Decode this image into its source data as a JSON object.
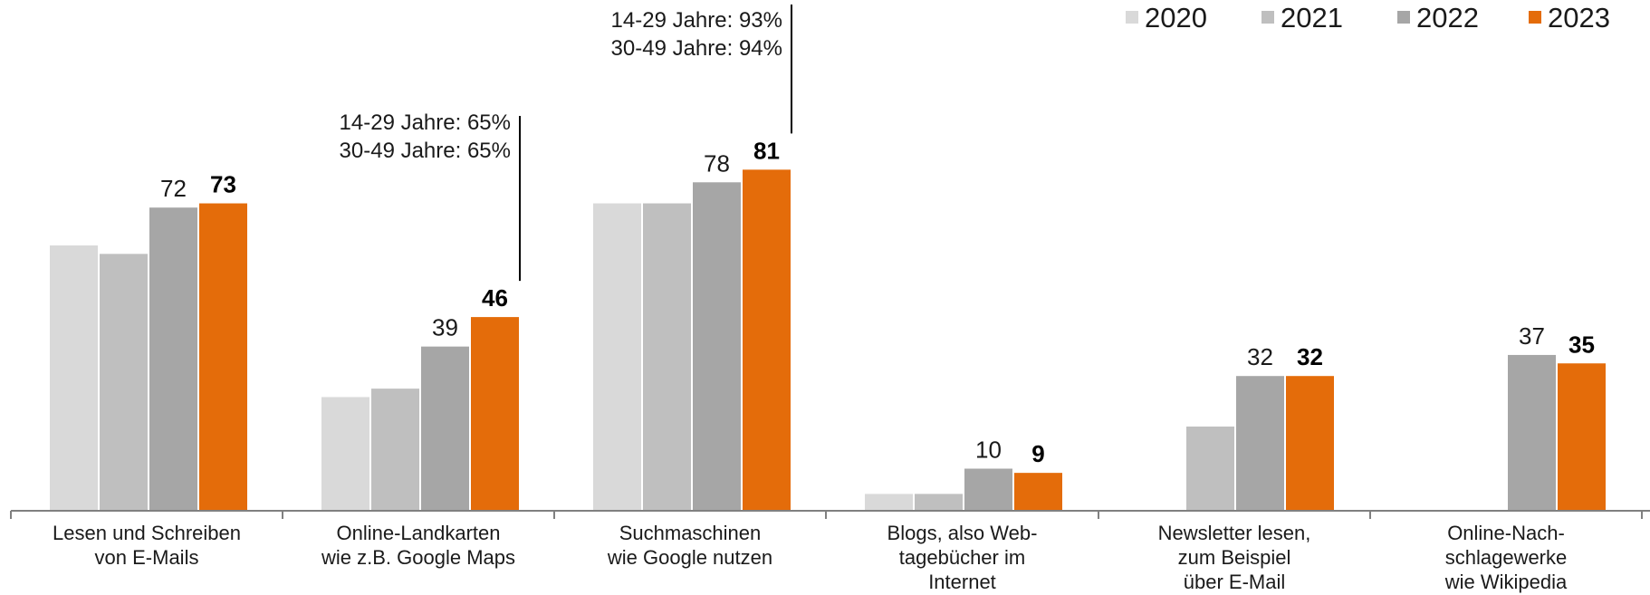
{
  "colors": {
    "2020": "#d9d9d9",
    "2021": "#bfbfbf",
    "2022": "#a6a6a6",
    "2023": "#e46c0a",
    "axis": "#808080",
    "text": "#1a1a1a"
  },
  "chart_data": {
    "type": "bar",
    "title": "",
    "xlabel": "",
    "ylabel": "",
    "ylim": [
      0,
      100
    ],
    "grid": false,
    "legend_position": "top-right",
    "categories": [
      [
        "Lesen und Schreiben",
        "von E-Mails"
      ],
      [
        "Online-Landkarten",
        "wie z.B. Google Maps"
      ],
      [
        "Suchmaschinen",
        "wie Google nutzen"
      ],
      [
        "Blogs, also Web-",
        "tagebücher im",
        "Internet"
      ],
      [
        "Newsletter lesen,",
        "zum Beispiel",
        "über E-Mail"
      ],
      [
        "Online-Nach-",
        "schlagewerke",
        "wie Wikipedia"
      ]
    ],
    "series": [
      {
        "name": "2020",
        "values": [
          63,
          27,
          73,
          4,
          null,
          null
        ],
        "labels": [
          "",
          "",
          "",
          "",
          "",
          ""
        ]
      },
      {
        "name": "2021",
        "values": [
          61,
          29,
          73,
          4,
          20,
          null
        ],
        "labels": [
          "",
          "",
          "",
          "",
          "",
          ""
        ]
      },
      {
        "name": "2022",
        "values": [
          72,
          39,
          78,
          10,
          32,
          37
        ],
        "labels": [
          "72",
          "39",
          "78",
          "10",
          "32",
          "37"
        ]
      },
      {
        "name": "2023",
        "values": [
          73,
          46,
          81,
          9,
          32,
          35
        ],
        "labels": [
          "73",
          "46",
          "81",
          "9",
          "32",
          "35"
        ]
      }
    ],
    "annotations": [
      {
        "category_index": 1,
        "lines": [
          "14-29 Jahre: 65%",
          "30-49 Jahre: 65%"
        ]
      },
      {
        "category_index": 2,
        "lines": [
          "14-29 Jahre: 93%",
          "30-49 Jahre: 94%"
        ]
      }
    ]
  }
}
